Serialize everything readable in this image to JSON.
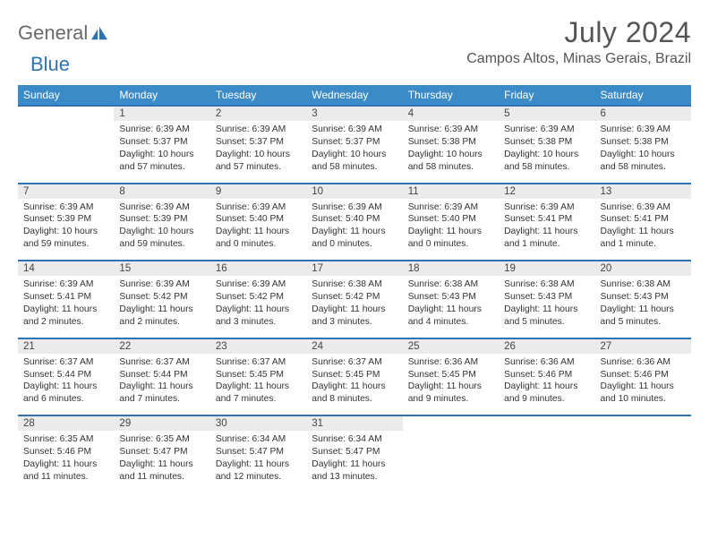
{
  "logo": {
    "word1": "General",
    "word2": "Blue"
  },
  "title": "July 2024",
  "location": "Campos Altos, Minas Gerais, Brazil",
  "colors": {
    "header_bg": "#3b8bc9",
    "header_text": "#ffffff",
    "rule": "#2e74b5",
    "daynum_bg": "#ebebeb",
    "text": "#333333",
    "title_text": "#555555",
    "logo_gray": "#6a6a6a",
    "logo_blue": "#2e74b5",
    "page_bg": "#ffffff"
  },
  "weekday_labels": [
    "Sunday",
    "Monday",
    "Tuesday",
    "Wednesday",
    "Thursday",
    "Friday",
    "Saturday"
  ],
  "weeks": [
    [
      null,
      {
        "n": "1",
        "sr": "Sunrise: 6:39 AM",
        "ss": "Sunset: 5:37 PM",
        "dl": "Daylight: 10 hours and 57 minutes."
      },
      {
        "n": "2",
        "sr": "Sunrise: 6:39 AM",
        "ss": "Sunset: 5:37 PM",
        "dl": "Daylight: 10 hours and 57 minutes."
      },
      {
        "n": "3",
        "sr": "Sunrise: 6:39 AM",
        "ss": "Sunset: 5:37 PM",
        "dl": "Daylight: 10 hours and 58 minutes."
      },
      {
        "n": "4",
        "sr": "Sunrise: 6:39 AM",
        "ss": "Sunset: 5:38 PM",
        "dl": "Daylight: 10 hours and 58 minutes."
      },
      {
        "n": "5",
        "sr": "Sunrise: 6:39 AM",
        "ss": "Sunset: 5:38 PM",
        "dl": "Daylight: 10 hours and 58 minutes."
      },
      {
        "n": "6",
        "sr": "Sunrise: 6:39 AM",
        "ss": "Sunset: 5:38 PM",
        "dl": "Daylight: 10 hours and 58 minutes."
      }
    ],
    [
      {
        "n": "7",
        "sr": "Sunrise: 6:39 AM",
        "ss": "Sunset: 5:39 PM",
        "dl": "Daylight: 10 hours and 59 minutes."
      },
      {
        "n": "8",
        "sr": "Sunrise: 6:39 AM",
        "ss": "Sunset: 5:39 PM",
        "dl": "Daylight: 10 hours and 59 minutes."
      },
      {
        "n": "9",
        "sr": "Sunrise: 6:39 AM",
        "ss": "Sunset: 5:40 PM",
        "dl": "Daylight: 11 hours and 0 minutes."
      },
      {
        "n": "10",
        "sr": "Sunrise: 6:39 AM",
        "ss": "Sunset: 5:40 PM",
        "dl": "Daylight: 11 hours and 0 minutes."
      },
      {
        "n": "11",
        "sr": "Sunrise: 6:39 AM",
        "ss": "Sunset: 5:40 PM",
        "dl": "Daylight: 11 hours and 0 minutes."
      },
      {
        "n": "12",
        "sr": "Sunrise: 6:39 AM",
        "ss": "Sunset: 5:41 PM",
        "dl": "Daylight: 11 hours and 1 minute."
      },
      {
        "n": "13",
        "sr": "Sunrise: 6:39 AM",
        "ss": "Sunset: 5:41 PM",
        "dl": "Daylight: 11 hours and 1 minute."
      }
    ],
    [
      {
        "n": "14",
        "sr": "Sunrise: 6:39 AM",
        "ss": "Sunset: 5:41 PM",
        "dl": "Daylight: 11 hours and 2 minutes."
      },
      {
        "n": "15",
        "sr": "Sunrise: 6:39 AM",
        "ss": "Sunset: 5:42 PM",
        "dl": "Daylight: 11 hours and 2 minutes."
      },
      {
        "n": "16",
        "sr": "Sunrise: 6:39 AM",
        "ss": "Sunset: 5:42 PM",
        "dl": "Daylight: 11 hours and 3 minutes."
      },
      {
        "n": "17",
        "sr": "Sunrise: 6:38 AM",
        "ss": "Sunset: 5:42 PM",
        "dl": "Daylight: 11 hours and 3 minutes."
      },
      {
        "n": "18",
        "sr": "Sunrise: 6:38 AM",
        "ss": "Sunset: 5:43 PM",
        "dl": "Daylight: 11 hours and 4 minutes."
      },
      {
        "n": "19",
        "sr": "Sunrise: 6:38 AM",
        "ss": "Sunset: 5:43 PM",
        "dl": "Daylight: 11 hours and 5 minutes."
      },
      {
        "n": "20",
        "sr": "Sunrise: 6:38 AM",
        "ss": "Sunset: 5:43 PM",
        "dl": "Daylight: 11 hours and 5 minutes."
      }
    ],
    [
      {
        "n": "21",
        "sr": "Sunrise: 6:37 AM",
        "ss": "Sunset: 5:44 PM",
        "dl": "Daylight: 11 hours and 6 minutes."
      },
      {
        "n": "22",
        "sr": "Sunrise: 6:37 AM",
        "ss": "Sunset: 5:44 PM",
        "dl": "Daylight: 11 hours and 7 minutes."
      },
      {
        "n": "23",
        "sr": "Sunrise: 6:37 AM",
        "ss": "Sunset: 5:45 PM",
        "dl": "Daylight: 11 hours and 7 minutes."
      },
      {
        "n": "24",
        "sr": "Sunrise: 6:37 AM",
        "ss": "Sunset: 5:45 PM",
        "dl": "Daylight: 11 hours and 8 minutes."
      },
      {
        "n": "25",
        "sr": "Sunrise: 6:36 AM",
        "ss": "Sunset: 5:45 PM",
        "dl": "Daylight: 11 hours and 9 minutes."
      },
      {
        "n": "26",
        "sr": "Sunrise: 6:36 AM",
        "ss": "Sunset: 5:46 PM",
        "dl": "Daylight: 11 hours and 9 minutes."
      },
      {
        "n": "27",
        "sr": "Sunrise: 6:36 AM",
        "ss": "Sunset: 5:46 PM",
        "dl": "Daylight: 11 hours and 10 minutes."
      }
    ],
    [
      {
        "n": "28",
        "sr": "Sunrise: 6:35 AM",
        "ss": "Sunset: 5:46 PM",
        "dl": "Daylight: 11 hours and 11 minutes."
      },
      {
        "n": "29",
        "sr": "Sunrise: 6:35 AM",
        "ss": "Sunset: 5:47 PM",
        "dl": "Daylight: 11 hours and 11 minutes."
      },
      {
        "n": "30",
        "sr": "Sunrise: 6:34 AM",
        "ss": "Sunset: 5:47 PM",
        "dl": "Daylight: 11 hours and 12 minutes."
      },
      {
        "n": "31",
        "sr": "Sunrise: 6:34 AM",
        "ss": "Sunset: 5:47 PM",
        "dl": "Daylight: 11 hours and 13 minutes."
      },
      null,
      null,
      null
    ]
  ]
}
